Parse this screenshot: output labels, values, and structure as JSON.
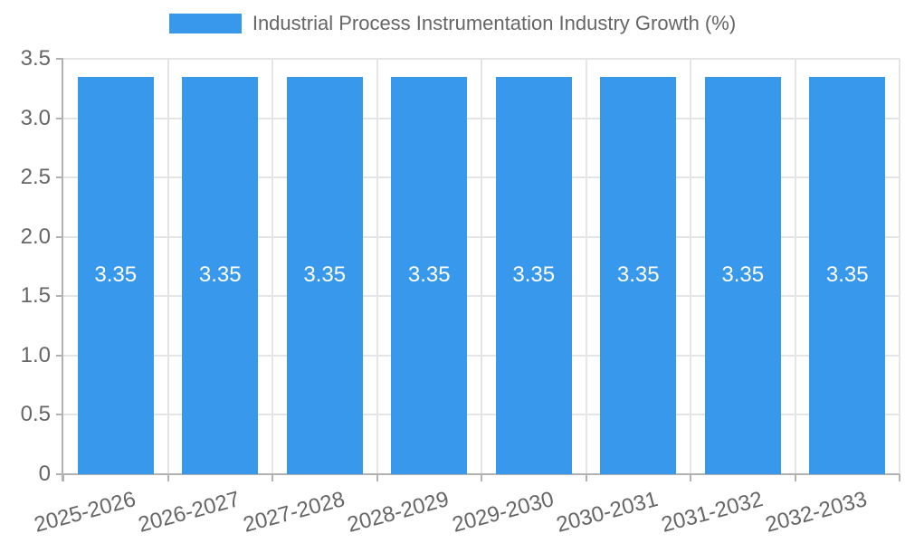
{
  "chart_data": {
    "type": "bar",
    "title": "Industrial Process Instrumentation Industry Growth (%)",
    "legend_position": "top",
    "grid": true,
    "categories": [
      "2025-2026",
      "2026-2027",
      "2027-2028",
      "2028-2029",
      "2029-2030",
      "2030-2031",
      "2031-2032",
      "2032-2033"
    ],
    "values": [
      3.35,
      3.35,
      3.35,
      3.35,
      3.35,
      3.35,
      3.35,
      3.35
    ],
    "value_labels": [
      "3.35",
      "3.35",
      "3.35",
      "3.35",
      "3.35",
      "3.35",
      "3.35",
      "3.35"
    ],
    "xlabel": "",
    "ylabel": "",
    "ylim": [
      0,
      3.5
    ],
    "yticks": [
      0,
      0.5,
      1.0,
      1.5,
      2.0,
      2.5,
      3.0,
      3.5
    ],
    "ytick_labels": [
      "0",
      "0.5",
      "1.0",
      "1.5",
      "2.0",
      "2.5",
      "3.0",
      "3.5"
    ],
    "colors": {
      "bar": "#3899EC",
      "bar_label": "#ffffff",
      "grid": "#e5e5e5",
      "axis": "#b2b2b2",
      "tick_text": "#666666",
      "legend_text": "#666666",
      "background": "#ffffff"
    }
  }
}
